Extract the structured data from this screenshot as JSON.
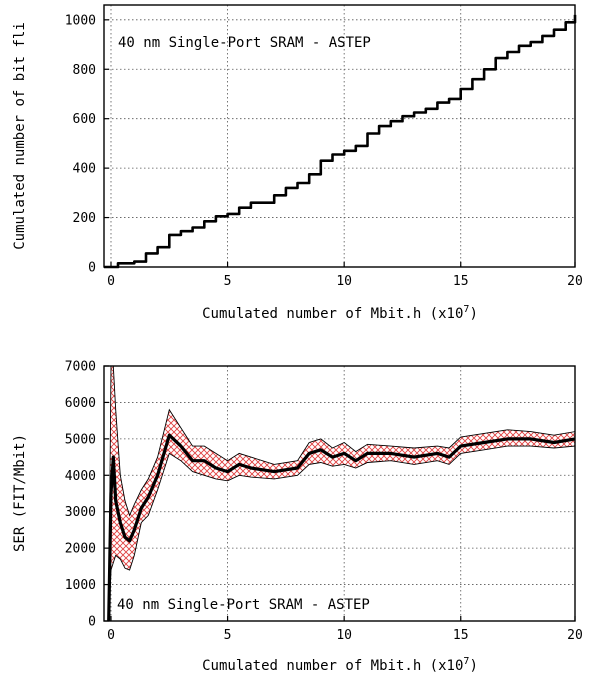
{
  "chart_data": [
    {
      "type": "line",
      "title": "",
      "annotation": "40 nm Single-Port SRAM - ASTEP",
      "xlabel": "Cumulated number of Mbit.h (x10",
      "xlabel_exponent": "7",
      "xlabel_suffix": ")",
      "ylabel": "Cumulated number of bit fli",
      "xlim": [
        -0.3,
        19.9
      ],
      "ylim": [
        0,
        1060
      ],
      "xticks": [
        0,
        5,
        10,
        15,
        20
      ],
      "yticks": [
        0,
        200,
        400,
        600,
        800,
        1000
      ],
      "grid": true,
      "line_color": "#000000",
      "series": [
        {
          "x": [
            -0.3,
            0.3,
            1.0,
            1.5,
            2.0,
            2.5,
            3.0,
            3.5,
            4.0,
            4.5,
            5.0,
            5.5,
            6.0,
            7.0,
            7.5,
            8.0,
            8.5,
            9.0,
            9.5,
            10.0,
            10.5,
            11.0,
            11.5,
            12.0,
            12.5,
            13.0,
            13.5,
            14.0,
            14.5,
            15.0,
            15.5,
            16.0,
            16.5,
            17.0,
            17.5,
            18.0,
            18.5,
            19.0,
            19.5,
            19.9
          ],
          "y": [
            0,
            15,
            22,
            55,
            80,
            130,
            145,
            160,
            185,
            205,
            215,
            240,
            260,
            290,
            320,
            340,
            375,
            430,
            455,
            470,
            490,
            540,
            570,
            590,
            610,
            625,
            640,
            665,
            680,
            720,
            760,
            800,
            845,
            870,
            895,
            910,
            935,
            960,
            990,
            1020
          ]
        }
      ]
    },
    {
      "type": "line",
      "title": "",
      "annotation": "40 nm Single-Port SRAM - ASTEP",
      "xlabel": "Cumulated number of Mbit.h (x10",
      "xlabel_exponent": "7",
      "xlabel_suffix": ")",
      "ylabel": "SER (FIT/Mbit)",
      "xlim": [
        -0.3,
        19.9
      ],
      "ylim": [
        0,
        7000
      ],
      "xticks": [
        0,
        5,
        10,
        15,
        20
      ],
      "yticks": [
        0,
        1000,
        2000,
        3000,
        4000,
        5000,
        6000,
        7000
      ],
      "grid": true,
      "line_color": "#000000",
      "band_color": "#e04040",
      "series": [
        {
          "x": [
            -0.1,
            0.0,
            0.1,
            0.2,
            0.4,
            0.6,
            0.8,
            1.0,
            1.3,
            1.6,
            2.0,
            2.5,
            3.0,
            3.5,
            4.0,
            4.5,
            5.0,
            5.5,
            6.0,
            7.0,
            8.0,
            8.5,
            9.0,
            9.5,
            10.0,
            10.5,
            11.0,
            12.0,
            13.0,
            14.0,
            14.5,
            15.0,
            16.0,
            17.0,
            18.0,
            19.0,
            19.9
          ],
          "y": [
            0,
            3500,
            4500,
            3300,
            2700,
            2300,
            2200,
            2500,
            3100,
            3400,
            4000,
            5100,
            4800,
            4400,
            4400,
            4200,
            4100,
            4300,
            4200,
            4100,
            4200,
            4600,
            4700,
            4500,
            4600,
            4400,
            4600,
            4600,
            4500,
            4600,
            4500,
            4800,
            4900,
            5000,
            5000,
            4900,
            5000
          ],
          "band_low": [
            0,
            1400,
            1600,
            1800,
            1700,
            1450,
            1400,
            1800,
            2700,
            2900,
            3600,
            4600,
            4400,
            4100,
            4000,
            3900,
            3850,
            4000,
            3950,
            3900,
            4000,
            4300,
            4350,
            4250,
            4300,
            4200,
            4350,
            4400,
            4300,
            4400,
            4300,
            4600,
            4700,
            4800,
            4800,
            4750,
            4800
          ],
          "band_high": [
            0,
            7000,
            7000,
            5800,
            4000,
            3300,
            2900,
            3200,
            3600,
            3900,
            4500,
            5800,
            5300,
            4800,
            4800,
            4600,
            4400,
            4600,
            4500,
            4300,
            4400,
            4900,
            5000,
            4750,
            4900,
            4650,
            4850,
            4800,
            4750,
            4800,
            4750,
            5050,
            5150,
            5250,
            5200,
            5100,
            5200
          ]
        }
      ]
    }
  ]
}
